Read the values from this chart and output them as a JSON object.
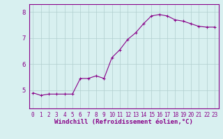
{
  "x": [
    0,
    1,
    2,
    3,
    4,
    5,
    6,
    7,
    8,
    9,
    10,
    11,
    12,
    13,
    14,
    15,
    16,
    17,
    18,
    19,
    20,
    21,
    22,
    23
  ],
  "y": [
    4.9,
    4.8,
    4.85,
    4.85,
    4.85,
    4.85,
    5.45,
    5.45,
    5.55,
    5.45,
    6.25,
    6.55,
    6.95,
    7.2,
    7.55,
    7.85,
    7.9,
    7.85,
    7.7,
    7.65,
    7.55,
    7.45,
    7.42,
    7.42
  ],
  "line_color": "#880088",
  "marker": "+",
  "marker_size": 3.5,
  "bg_color": "#d8f0f0",
  "grid_color": "#b0cece",
  "xlabel": "Windchill (Refroidissement éolien,°C)",
  "xlabel_color": "#880088",
  "xlabel_fontsize": 6.5,
  "xlabel_font": "monospace",
  "tick_label_color": "#880088",
  "tick_fontsize": 5.5,
  "ylim": [
    4.3,
    8.3
  ],
  "xlim": [
    -0.5,
    23.5
  ],
  "yticks": [
    5,
    6,
    7,
    8
  ],
  "xticks": [
    0,
    1,
    2,
    3,
    4,
    5,
    6,
    7,
    8,
    9,
    10,
    11,
    12,
    13,
    14,
    15,
    16,
    17,
    18,
    19,
    20,
    21,
    22,
    23
  ],
  "spine_color": "#880088",
  "linewidth": 0.8,
  "marker_linewidth": 0.8
}
